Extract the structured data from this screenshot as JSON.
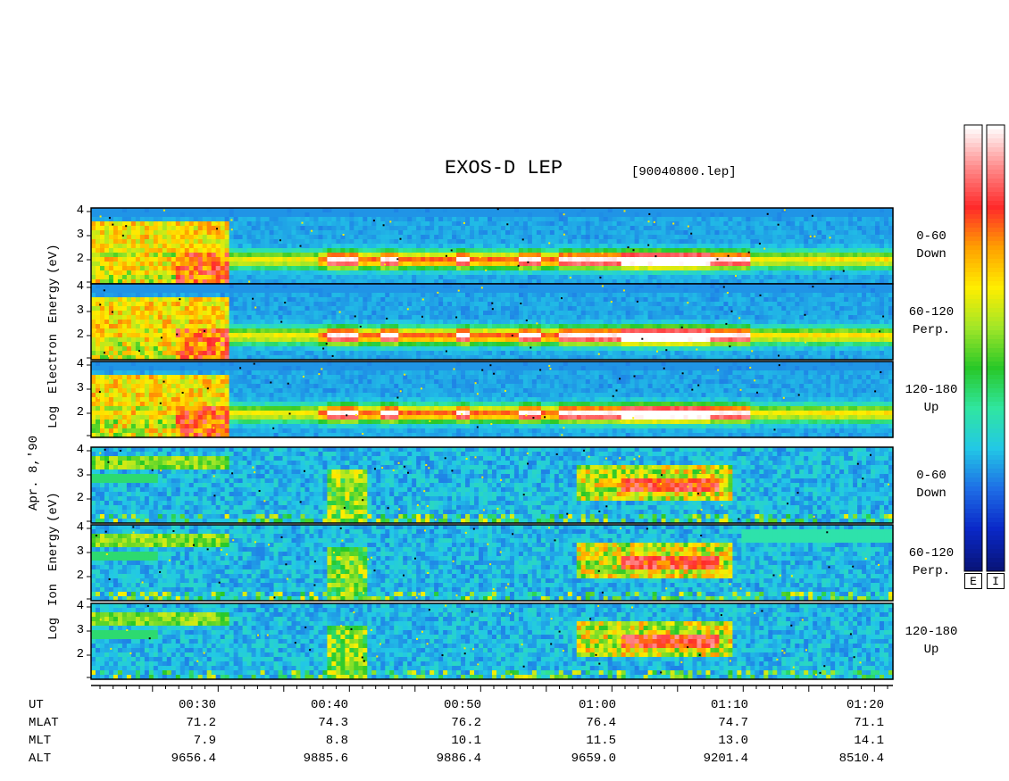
{
  "chart_data": {
    "type": "heatmap",
    "title": "EXOS-D LEP",
    "file": "[90040800.lep]",
    "date_label": "Apr. 8,'90",
    "electron_ylabel": [
      "Log",
      "Electron",
      "Energy",
      "(eV)"
    ],
    "ion_ylabel": [
      "Log",
      "Ion",
      "Energy",
      "(eV)"
    ],
    "y_tick_labels": [
      "4",
      "3",
      "2"
    ],
    "panels": [
      {
        "species": "electron",
        "angle": "0-60",
        "direction": "Down"
      },
      {
        "species": "electron",
        "angle": "60-120",
        "direction": "Perp."
      },
      {
        "species": "electron",
        "angle": "120-180",
        "direction": "Up"
      },
      {
        "species": "ion",
        "angle": "0-60",
        "direction": "Down"
      },
      {
        "species": "ion",
        "angle": "60-120",
        "direction": "Perp."
      },
      {
        "species": "ion",
        "angle": "120-180",
        "direction": "Up"
      }
    ],
    "x_rows": [
      {
        "name": "UT",
        "values": [
          "00:30",
          "00:40",
          "00:50",
          "01:00",
          "01:10",
          "01:20"
        ]
      },
      {
        "name": "MLAT",
        "values": [
          "71.2",
          "74.3",
          "76.2",
          "76.4",
          "74.7",
          "71.1"
        ]
      },
      {
        "name": "MLT",
        "values": [
          "7.9",
          "8.8",
          "10.1",
          "11.5",
          "13.0",
          "14.1"
        ]
      },
      {
        "name": "ALT",
        "values": [
          "9656.4",
          "9885.6",
          "9886.4",
          "9659.0",
          "9201.4",
          "8510.4"
        ]
      }
    ],
    "colorbar_labels": [
      "E",
      "I"
    ],
    "colorbar_colors": [
      "#08147a",
      "#0a28c8",
      "#1e6ee6",
      "#22c8e6",
      "#30e6a0",
      "#28c828",
      "#a0e628",
      "#ffee00",
      "#ffa000",
      "#ff2a2a",
      "#ff8c8c",
      "#ffffff"
    ]
  }
}
